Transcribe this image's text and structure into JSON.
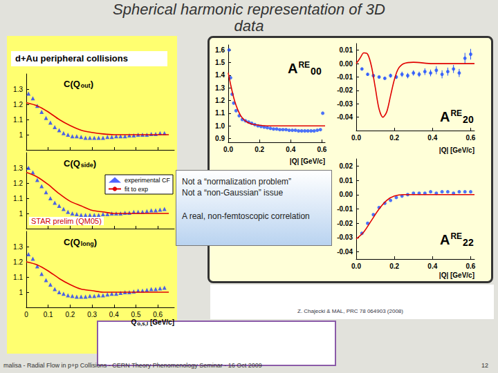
{
  "slide": {
    "title": "Spherical harmonic representation of 3D data",
    "panel_title": "d+Au peripheral collisions",
    "note": "STAR prelim (QM05)",
    "callout": [
      "Not a “normalization problem”",
      "Not a “non-Gaussian” issue",
      "A real, non-femtoscopic correlation"
    ],
    "citation": "Z. Chajecki & MAL, PRC 78 064903 (2008)",
    "footer": "malisa - Radial Flow in p+p Collisions - CERN Theory Phenomenology Seminar - 16 Oct 2009",
    "page": 12
  },
  "chart_data": [
    {
      "type": "scatter",
      "label": {
        "main": "C(Q",
        "sub": "out",
        "tail": ")"
      },
      "xlim": [
        0,
        0.675
      ],
      "xticks": [
        0,
        0.1,
        0.2,
        0.3,
        0.4,
        0.5,
        0.6
      ],
      "ylim": [
        0.9,
        1.4
      ],
      "yticks": [
        1,
        1.1,
        1.2,
        1.3
      ],
      "tick_labels": "y",
      "grid": false,
      "series": [
        {
          "name": "experimental CF",
          "type": "scatter",
          "marker": "triangle",
          "color": "#1f3cff",
          "x": [
            0.01,
            0.03,
            0.05,
            0.07,
            0.09,
            0.11,
            0.13,
            0.15,
            0.17,
            0.19,
            0.21,
            0.23,
            0.25,
            0.27,
            0.29,
            0.31,
            0.33,
            0.35,
            0.37,
            0.39,
            0.41,
            0.43,
            0.45,
            0.47,
            0.49,
            0.51,
            0.53,
            0.55,
            0.57,
            0.59,
            0.61,
            0.63
          ],
          "values": [
            1.27,
            1.24,
            1.19,
            1.15,
            1.11,
            1.08,
            1.05,
            1.03,
            1.01,
            1.0,
            0.99,
            0.99,
            0.985,
            0.98,
            0.98,
            0.98,
            0.98,
            0.98,
            0.985,
            0.985,
            0.99,
            0.99,
            0.99,
            0.995,
            0.995,
            1.0,
            1.0,
            1.0,
            1.005,
            1.005,
            1.01,
            1.01
          ]
        },
        {
          "name": "fit to exp",
          "type": "line",
          "line_style": "solid",
          "color": "#e00000",
          "x": [
            0,
            0.05,
            0.1,
            0.15,
            0.2,
            0.25,
            0.3,
            0.35,
            0.4,
            0.45,
            0.5,
            0.55,
            0.6,
            0.65
          ],
          "values": [
            1.21,
            1.19,
            1.15,
            1.1,
            1.06,
            1.03,
            1.015,
            1.005,
            1.0,
            1.0,
            1.0,
            1.0,
            1.0,
            1.0
          ]
        }
      ]
    },
    {
      "type": "scatter",
      "label": {
        "main": "C(Q",
        "sub": "side",
        "tail": ")"
      },
      "xlim": [
        0,
        0.675
      ],
      "xticks": [
        0,
        0.1,
        0.2,
        0.3,
        0.4,
        0.5,
        0.6
      ],
      "ylim": [
        0.9,
        1.4
      ],
      "yticks": [
        1,
        1.1,
        1.2,
        1.3
      ],
      "tick_labels": "y",
      "grid": false,
      "legend": "upper right",
      "series": [
        {
          "name": "experimental CF",
          "type": "scatter",
          "marker": "triangle",
          "color": "#1f3cff",
          "x": [
            0.01,
            0.03,
            0.05,
            0.07,
            0.09,
            0.11,
            0.13,
            0.15,
            0.17,
            0.19,
            0.21,
            0.23,
            0.25,
            0.27,
            0.29,
            0.31,
            0.33,
            0.35,
            0.37,
            0.39,
            0.41,
            0.43,
            0.45,
            0.47,
            0.49,
            0.51,
            0.53,
            0.55,
            0.57,
            0.59,
            0.61,
            0.63
          ],
          "values": [
            1.3,
            1.27,
            1.22,
            1.18,
            1.14,
            1.1,
            1.07,
            1.05,
            1.03,
            1.01,
            1.0,
            0.995,
            0.99,
            0.99,
            0.99,
            0.99,
            0.99,
            0.995,
            0.995,
            1.0,
            1.0,
            1.0,
            1.005,
            1.005,
            1.01,
            1.01,
            1.01,
            1.015,
            1.02,
            1.02,
            1.025,
            1.03
          ]
        },
        {
          "name": "fit to exp",
          "type": "line",
          "line_style": "solid",
          "color": "#e00000",
          "x": [
            0,
            0.05,
            0.1,
            0.15,
            0.2,
            0.25,
            0.3,
            0.35,
            0.4,
            0.45,
            0.5,
            0.55,
            0.6,
            0.65
          ],
          "values": [
            1.27,
            1.24,
            1.19,
            1.13,
            1.08,
            1.05,
            1.02,
            1.01,
            1.0,
            1.0,
            1.0,
            1.0,
            1.0,
            1.0
          ]
        }
      ]
    },
    {
      "type": "scatter",
      "label": {
        "main": "C(Q",
        "sub": "long",
        "tail": ")"
      },
      "x_label": {
        "main": "Q",
        "sub": "o,s,l",
        "tail": " [GeV/c]"
      },
      "xlim": [
        0,
        0.675
      ],
      "xticks": [
        0,
        0.1,
        0.2,
        0.3,
        0.4,
        0.5,
        0.6
      ],
      "ylim": [
        0.9,
        1.4
      ],
      "yticks": [
        1,
        1.1,
        1.2,
        1.3
      ],
      "grid": false,
      "series": [
        {
          "name": "experimental CF",
          "type": "scatter",
          "marker": "triangle",
          "color": "#1f3cff",
          "x": [
            0.01,
            0.03,
            0.05,
            0.07,
            0.09,
            0.11,
            0.13,
            0.15,
            0.17,
            0.19,
            0.21,
            0.23,
            0.25,
            0.27,
            0.29,
            0.31,
            0.33,
            0.35,
            0.37,
            0.39,
            0.41,
            0.43,
            0.45,
            0.47,
            0.49,
            0.51,
            0.53,
            0.55,
            0.57,
            0.59,
            0.61,
            0.63
          ],
          "values": [
            1.25,
            1.22,
            1.17,
            1.12,
            1.08,
            1.05,
            1.02,
            1.0,
            0.99,
            0.98,
            0.975,
            0.97,
            0.97,
            0.97,
            0.975,
            0.975,
            0.98,
            0.98,
            0.985,
            0.99,
            0.99,
            0.995,
            1.0,
            1.0,
            1.005,
            1.01,
            1.01,
            1.015,
            1.02,
            1.02,
            1.025,
            1.03
          ]
        },
        {
          "name": "fit to exp",
          "type": "line",
          "line_style": "solid",
          "color": "#e00000",
          "x": [
            0,
            0.05,
            0.1,
            0.15,
            0.2,
            0.25,
            0.3,
            0.35,
            0.4,
            0.45,
            0.5,
            0.55,
            0.6,
            0.65
          ],
          "values": [
            1.2,
            1.18,
            1.14,
            1.09,
            1.05,
            1.02,
            1.01,
            1.0,
            1.0,
            1.0,
            1.0,
            1.0,
            1.0,
            1.0
          ]
        }
      ]
    },
    {
      "type": "scatter",
      "label": {
        "main": "A",
        "sup": "RE",
        "sub": "00"
      },
      "x_label": {
        "main": "|Q| [GeV/c]"
      },
      "xlim": [
        0,
        0.62
      ],
      "xticks": [
        {
          "value": 0,
          "label": "0.0"
        },
        0.2,
        0.4,
        0.6
      ],
      "ylim": [
        0.87,
        1.64
      ],
      "yticks": [
        0.9,
        {
          "value": 1,
          "label": "1.0"
        },
        1.1,
        1.2,
        1.3,
        1.4,
        1.5,
        1.6
      ],
      "grid": false,
      "series": [
        {
          "type": "scatter",
          "marker": "circle",
          "color": "#1f4fff",
          "x": [
            0.005,
            0.015,
            0.025,
            0.035,
            0.05,
            0.07,
            0.09,
            0.11,
            0.13,
            0.15,
            0.17,
            0.19,
            0.21,
            0.23,
            0.25,
            0.27,
            0.29,
            0.31,
            0.33,
            0.35,
            0.37,
            0.39,
            0.41,
            0.43,
            0.45,
            0.47,
            0.49,
            0.51,
            0.53,
            0.55,
            0.57,
            0.59,
            0.605
          ],
          "values": [
            1.6,
            1.38,
            1.25,
            1.18,
            1.12,
            1.08,
            1.05,
            1.04,
            1.03,
            1.02,
            1.01,
            1.0,
            0.995,
            0.99,
            0.985,
            0.98,
            0.975,
            0.975,
            0.97,
            0.97,
            0.97,
            0.965,
            0.965,
            0.965,
            0.96,
            0.96,
            0.96,
            0.96,
            0.96,
            0.96,
            0.965,
            0.97,
            1.1
          ]
        },
        {
          "type": "line",
          "line_style": "solid",
          "color": "#e00000",
          "x": [
            0,
            0.02,
            0.04,
            0.06,
            0.08,
            0.1,
            0.12,
            0.15,
            0.2,
            0.25,
            0.3,
            0.4,
            0.5,
            0.62
          ],
          "values": [
            1.42,
            1.3,
            1.2,
            1.13,
            1.08,
            1.05,
            1.03,
            1.015,
            1.005,
            1.0,
            1.0,
            1.0,
            1.0,
            1.0
          ]
        }
      ]
    },
    {
      "type": "scatter",
      "label": {
        "main": "A",
        "sup": "RE",
        "sub": "20"
      },
      "x_label": {
        "main": "|Q| [GeV/c]"
      },
      "xlim": [
        0,
        0.62
      ],
      "xticks": [
        {
          "value": 0,
          "label": "0.0"
        },
        0.2,
        0.4,
        0.6
      ],
      "ylim": [
        -0.05,
        0.015
      ],
      "yticks": [
        0.01,
        {
          "value": 0,
          "label": "0.00"
        },
        -0.01,
        -0.02,
        -0.03,
        -0.04
      ],
      "grid": false,
      "series": [
        {
          "type": "scatter",
          "marker": "circle",
          "color": "#1f4fff",
          "x": [
            0.03,
            0.06,
            0.09,
            0.12,
            0.15,
            0.18,
            0.21,
            0.24,
            0.27,
            0.3,
            0.33,
            0.36,
            0.39,
            0.42,
            0.45,
            0.48,
            0.51,
            0.54,
            0.57,
            0.6
          ],
          "values": [
            -0.004,
            -0.008,
            -0.009,
            -0.01,
            -0.011,
            -0.009,
            -0.01,
            -0.008,
            -0.009,
            -0.007,
            -0.008,
            -0.006,
            -0.007,
            -0.005,
            -0.008,
            -0.006,
            -0.004,
            -0.007,
            0.004,
            0.007
          ],
          "errors": [
            0.001,
            0.001,
            0.001,
            0.001,
            0.001,
            0.0015,
            0.0015,
            0.002,
            0.002,
            0.002,
            0.002,
            0.0025,
            0.0025,
            0.003,
            0.003,
            0.003,
            0.003,
            0.003,
            0.004,
            0.004
          ]
        },
        {
          "type": "line",
          "line_style": "solid",
          "color": "#e00000",
          "x": [
            0,
            0.02,
            0.04,
            0.06,
            0.08,
            0.1,
            0.12,
            0.14,
            0.16,
            0.18,
            0.2,
            0.22,
            0.25,
            0.3,
            0.4,
            0.5,
            0.62
          ],
          "values": [
            0,
            0.004,
            0.008,
            0.007,
            -0.002,
            -0.018,
            -0.034,
            -0.04,
            -0.036,
            -0.024,
            -0.012,
            -0.004,
            0.0,
            0.001,
            0.0,
            0.0,
            0.0
          ]
        }
      ]
    },
    {
      "type": "scatter",
      "label": {
        "main": "A",
        "sup": "RE",
        "sub": "22"
      },
      "x_label": {
        "main": "|Q| [GeV/c]"
      },
      "xlim": [
        0,
        0.62
      ],
      "xticks": [
        {
          "value": 0,
          "label": "0.0"
        },
        0.2,
        0.4,
        0.6
      ],
      "ylim": [
        -0.045,
        0.025
      ],
      "yticks": [
        0.02,
        0.01,
        {
          "value": 0,
          "label": "0.00"
        },
        -0.01,
        -0.02,
        -0.03,
        -0.04
      ],
      "grid": false,
      "series": [
        {
          "type": "scatter",
          "marker": "circle",
          "color": "#1f4fff",
          "x": [
            0.03,
            0.06,
            0.09,
            0.12,
            0.15,
            0.18,
            0.21,
            0.24,
            0.27,
            0.3,
            0.33,
            0.36,
            0.39,
            0.42,
            0.45,
            0.48,
            0.51,
            0.54,
            0.57,
            0.6
          ],
          "values": [
            -0.027,
            -0.02,
            -0.014,
            -0.009,
            -0.006,
            -0.004,
            -0.002,
            -0.001,
            0,
            0.001,
            0.001,
            0.001,
            0.002,
            0.001,
            0.002,
            0.002,
            0.001,
            0.002,
            0.002,
            0.002
          ]
        },
        {
          "type": "line",
          "line_style": "solid",
          "color": "#e00000",
          "x": [
            0,
            0.04,
            0.08,
            0.12,
            0.16,
            0.2,
            0.25,
            0.3,
            0.4,
            0.5,
            0.62
          ],
          "values": [
            -0.031,
            -0.026,
            -0.018,
            -0.01,
            -0.004,
            -0.001,
            0,
            0,
            0,
            0,
            0
          ]
        }
      ]
    }
  ]
}
